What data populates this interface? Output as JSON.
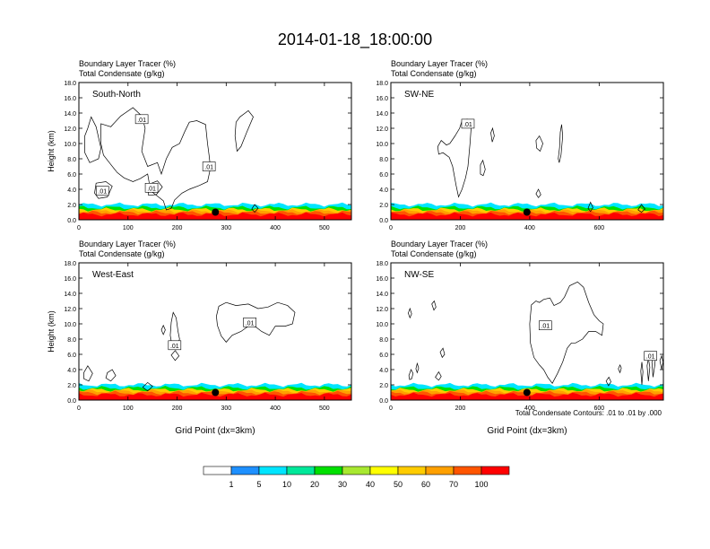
{
  "title": "2014-01-18_18:00:00",
  "chart_data": [
    {
      "type": "area",
      "panel_label": "South-North",
      "var_labels": [
        "Boundary Layer Tracer   (%)",
        "Total Condensate   (g/kg)"
      ],
      "ylabel": "Height (km)",
      "xlabel": "",
      "xlim": [
        0,
        555
      ],
      "ylim": [
        0,
        18
      ],
      "xticks": [
        0,
        100,
        200,
        300,
        400,
        500
      ],
      "yticks": [
        "0.0",
        "2.0",
        "4.0",
        "6.0",
        "8.0",
        "10.0",
        "12.0",
        "14.0",
        "16.0",
        "18.0"
      ],
      "marker": {
        "x": 278,
        "y": 1.0
      },
      "contour_labels": [
        {
          "text": ".01",
          "x": 128,
          "y": 13.2
        },
        {
          "text": ".01",
          "x": 265,
          "y": 7.0
        },
        {
          "text": ".01",
          "x": 48,
          "y": 3.8
        },
        {
          "text": ".01",
          "x": 148,
          "y": 4.2
        }
      ],
      "contours": [
        [
          [
            18,
            12.0
          ],
          [
            25,
            13.5
          ],
          [
            35,
            12.2
          ],
          [
            45,
            9.4
          ],
          [
            40,
            8.0
          ],
          [
            22,
            7.5
          ],
          [
            12,
            8.8
          ],
          [
            12,
            11.0
          ]
        ],
        [
          [
            45,
            12.6
          ],
          [
            65,
            12.2
          ],
          [
            85,
            13.6
          ],
          [
            110,
            14.7
          ],
          [
            125,
            13.8
          ],
          [
            130,
            13.2
          ],
          [
            135,
            12.0
          ],
          [
            128,
            9.0
          ],
          [
            140,
            7.0
          ],
          [
            160,
            7.5
          ],
          [
            168,
            6.0
          ],
          [
            178,
            8.0
          ],
          [
            190,
            9.5
          ],
          [
            205,
            10.0
          ],
          [
            215,
            11.5
          ],
          [
            225,
            12.8
          ],
          [
            240,
            13.0
          ],
          [
            258,
            12.5
          ],
          [
            262,
            10.0
          ],
          [
            265,
            8.5
          ],
          [
            268,
            6.8
          ],
          [
            262,
            5.0
          ],
          [
            245,
            4.5
          ],
          [
            225,
            4.0
          ],
          [
            210,
            3.5
          ],
          [
            195,
            2.6
          ],
          [
            188,
            1.5
          ],
          [
            178,
            1.3
          ],
          [
            172,
            2.5
          ],
          [
            162,
            3.0
          ],
          [
            150,
            3.6
          ],
          [
            145,
            4.2
          ],
          [
            140,
            6.0
          ],
          [
            125,
            5.4
          ],
          [
            110,
            5.0
          ],
          [
            92,
            5.5
          ],
          [
            78,
            6.2
          ],
          [
            62,
            7.5
          ],
          [
            50,
            8.5
          ],
          [
            45,
            10.0
          ]
        ],
        [
          [
            320,
            12.8
          ],
          [
            328,
            13.5
          ],
          [
            345,
            14.3
          ],
          [
            355,
            13.5
          ],
          [
            342,
            11.5
          ],
          [
            330,
            9.6
          ],
          [
            322,
            9.0
          ],
          [
            318,
            11.0
          ]
        ],
        [
          [
            35,
            4.8
          ],
          [
            55,
            5.0
          ],
          [
            68,
            4.4
          ],
          [
            58,
            3.0
          ],
          [
            40,
            2.8
          ],
          [
            32,
            3.5
          ]
        ],
        [
          [
            140,
            4.6
          ],
          [
            160,
            5.1
          ],
          [
            170,
            4.3
          ],
          [
            158,
            3.3
          ],
          [
            142,
            3.2
          ]
        ],
        [
          [
            352,
            1.4
          ],
          [
            358,
            2.0
          ],
          [
            365,
            1.5
          ],
          [
            358,
            1.0
          ]
        ]
      ]
    },
    {
      "type": "area",
      "panel_label": "SW-NE",
      "var_labels": [
        "Boundary Layer Tracer   (%)",
        "Total Condensate   (g/kg)"
      ],
      "ylabel": "",
      "xlabel": "",
      "xlim": [
        0,
        785
      ],
      "ylim": [
        0,
        18
      ],
      "xticks": [
        0,
        200,
        400,
        600
      ],
      "yticks": [
        "0.0",
        "2.0",
        "4.0",
        "6.0",
        "8.0",
        "10.0",
        "12.0",
        "14.0",
        "16.0",
        "18.0"
      ],
      "marker": {
        "x": 392,
        "y": 1.0
      },
      "contour_labels": [
        {
          "text": ".01",
          "x": 222,
          "y": 12.6
        }
      ],
      "contours": [
        [
          [
            135,
            9.6
          ],
          [
            145,
            10.4
          ],
          [
            160,
            9.8
          ],
          [
            170,
            10.0
          ],
          [
            185,
            11.0
          ],
          [
            198,
            12.0
          ],
          [
            205,
            13.0
          ],
          [
            220,
            13.2
          ],
          [
            232,
            12.5
          ],
          [
            228,
            10.0
          ],
          [
            222,
            7.0
          ],
          [
            215,
            5.5
          ],
          [
            205,
            4.0
          ],
          [
            195,
            3.0
          ],
          [
            188,
            4.5
          ],
          [
            178,
            7.0
          ],
          [
            168,
            8.2
          ],
          [
            150,
            8.8
          ],
          [
            138,
            8.6
          ]
        ],
        [
          [
            258,
            7.2
          ],
          [
            265,
            7.8
          ],
          [
            272,
            6.6
          ],
          [
            266,
            5.8
          ],
          [
            258,
            6.0
          ]
        ],
        [
          [
            288,
            11.4
          ],
          [
            293,
            12.0
          ],
          [
            298,
            11.0
          ],
          [
            292,
            10.2
          ]
        ],
        [
          [
            418,
            10.4
          ],
          [
            428,
            11.0
          ],
          [
            438,
            10.0
          ],
          [
            430,
            9.0
          ],
          [
            420,
            9.4
          ]
        ],
        [
          [
            418,
            3.4
          ],
          [
            425,
            4.0
          ],
          [
            432,
            3.3
          ],
          [
            425,
            2.9
          ]
        ],
        [
          [
            482,
            8.0
          ],
          [
            486,
            9.5
          ],
          [
            488,
            11.5
          ],
          [
            492,
            12.5
          ],
          [
            495,
            11.0
          ],
          [
            490,
            8.5
          ],
          [
            485,
            7.5
          ]
        ],
        [
          [
            568,
            1.5
          ],
          [
            575,
            2.3
          ],
          [
            582,
            1.6
          ],
          [
            575,
            1.1
          ]
        ],
        [
          [
            712,
            1.3
          ],
          [
            722,
            2.0
          ],
          [
            732,
            1.4
          ],
          [
            722,
            1.0
          ]
        ]
      ]
    },
    {
      "type": "area",
      "panel_label": "West-East",
      "var_labels": [
        "Boundary Layer Tracer   (%)",
        "Total Condensate   (g/kg)"
      ],
      "ylabel": "Height (km)",
      "xlabel": "Grid Point (dx=3km)",
      "xlim": [
        0,
        555
      ],
      "ylim": [
        0,
        18
      ],
      "xticks": [
        0,
        100,
        200,
        300,
        400,
        500
      ],
      "yticks": [
        "0.0",
        "2.0",
        "4.0",
        "6.0",
        "8.0",
        "10.0",
        "12.0",
        "14.0",
        "16.0",
        "18.0"
      ],
      "marker": {
        "x": 278,
        "y": 1.0
      },
      "contour_labels": [
        {
          "text": ".01",
          "x": 348,
          "y": 10.2
        },
        {
          "text": ".01",
          "x": 195,
          "y": 7.2
        }
      ],
      "contours": [
        [
          [
            280,
            11.0
          ],
          [
            285,
            12.3
          ],
          [
            300,
            12.8
          ],
          [
            320,
            12.4
          ],
          [
            345,
            12.6
          ],
          [
            365,
            12.0
          ],
          [
            385,
            12.2
          ],
          [
            405,
            12.8
          ],
          [
            425,
            12.4
          ],
          [
            440,
            11.5
          ],
          [
            435,
            10.0
          ],
          [
            420,
            9.7
          ],
          [
            400,
            9.7
          ],
          [
            388,
            8.5
          ],
          [
            372,
            9.0
          ],
          [
            360,
            9.6
          ],
          [
            345,
            9.7
          ],
          [
            330,
            9.0
          ],
          [
            312,
            8.5
          ],
          [
            300,
            7.6
          ],
          [
            290,
            8.4
          ],
          [
            282,
            9.8
          ]
        ],
        [
          [
            188,
            10.2
          ],
          [
            192,
            11.5
          ],
          [
            198,
            10.8
          ],
          [
            202,
            9.0
          ],
          [
            205,
            8.0
          ],
          [
            198,
            6.6
          ],
          [
            190,
            7.0
          ],
          [
            186,
            8.5
          ]
        ],
        [
          [
            168,
            9.2
          ],
          [
            172,
            9.8
          ],
          [
            176,
            9.2
          ],
          [
            172,
            8.6
          ]
        ],
        [
          [
            188,
            5.9
          ],
          [
            196,
            6.5
          ],
          [
            204,
            5.8
          ],
          [
            196,
            5.2
          ]
        ],
        [
          [
            58,
            3.6
          ],
          [
            68,
            4.0
          ],
          [
            75,
            3.2
          ],
          [
            65,
            2.5
          ],
          [
            55,
            2.9
          ]
        ],
        [
          [
            10,
            3.6
          ],
          [
            18,
            4.5
          ],
          [
            28,
            3.5
          ],
          [
            20,
            2.5
          ],
          [
            10,
            2.8
          ]
        ],
        [
          [
            130,
            1.7
          ],
          [
            140,
            2.3
          ],
          [
            150,
            1.8
          ],
          [
            140,
            1.2
          ]
        ]
      ]
    },
    {
      "type": "area",
      "panel_label": "NW-SE",
      "var_labels": [
        "Boundary Layer Tracer   (%)",
        "Total Condensate   (g/kg)"
      ],
      "ylabel": "",
      "xlabel": "Grid Point (dx=3km)",
      "xlim": [
        0,
        785
      ],
      "ylim": [
        0,
        18
      ],
      "xticks": [
        0,
        200,
        400,
        600
      ],
      "yticks": [
        "0.0",
        "2.0",
        "4.0",
        "6.0",
        "8.0",
        "10.0",
        "12.0",
        "14.0",
        "16.0",
        "18.0"
      ],
      "marker": {
        "x": 392,
        "y": 1.0
      },
      "contour_labels": [
        {
          "text": ".01",
          "x": 445,
          "y": 9.8
        },
        {
          "text": ".01",
          "x": 748,
          "y": 5.8
        }
      ],
      "contours": [
        [
          [
            400,
            10.0
          ],
          [
            405,
            12.5
          ],
          [
            418,
            13.0
          ],
          [
            428,
            12.8
          ],
          [
            440,
            13.2
          ],
          [
            458,
            13.4
          ],
          [
            470,
            12.4
          ],
          [
            488,
            12.8
          ],
          [
            500,
            13.5
          ],
          [
            515,
            15.0
          ],
          [
            538,
            15.5
          ],
          [
            555,
            14.8
          ],
          [
            570,
            12.8
          ],
          [
            585,
            11.2
          ],
          [
            600,
            10.4
          ],
          [
            612,
            10.0
          ],
          [
            608,
            8.5
          ],
          [
            590,
            9.0
          ],
          [
            570,
            9.0
          ],
          [
            552,
            8.0
          ],
          [
            532,
            7.5
          ],
          [
            520,
            7.5
          ],
          [
            508,
            6.8
          ],
          [
            495,
            5.0
          ],
          [
            480,
            3.5
          ],
          [
            465,
            2.2
          ],
          [
            452,
            3.0
          ],
          [
            440,
            4.0
          ],
          [
            428,
            4.6
          ],
          [
            412,
            5.6
          ],
          [
            402,
            7.5
          ]
        ],
        [
          [
            50,
            11.4
          ],
          [
            55,
            12.0
          ],
          [
            60,
            11.3
          ],
          [
            55,
            10.8
          ]
        ],
        [
          [
            118,
            12.6
          ],
          [
            125,
            13.0
          ],
          [
            130,
            12.2
          ],
          [
            124,
            11.8
          ]
        ],
        [
          [
            128,
            3.0
          ],
          [
            138,
            3.7
          ],
          [
            145,
            3.1
          ],
          [
            138,
            2.6
          ]
        ],
        [
          [
            142,
            6.3
          ],
          [
            150,
            6.8
          ],
          [
            155,
            6.0
          ],
          [
            148,
            5.6
          ]
        ],
        [
          [
            52,
            3.2
          ],
          [
            58,
            4.0
          ],
          [
            64,
            3.5
          ],
          [
            60,
            2.8
          ],
          [
            54,
            2.7
          ]
        ],
        [
          [
            72,
            4.1
          ],
          [
            76,
            4.8
          ],
          [
            80,
            4.2
          ],
          [
            76,
            3.6
          ]
        ],
        [
          [
            655,
            4.1
          ],
          [
            660,
            4.6
          ],
          [
            664,
            4.2
          ],
          [
            660,
            3.6
          ]
        ],
        [
          [
            620,
            2.5
          ],
          [
            628,
            3.0
          ],
          [
            634,
            2.4
          ],
          [
            627,
            1.9
          ]
        ],
        [
          [
            720,
            3.8
          ],
          [
            723,
            5.0
          ],
          [
            726,
            3.7
          ],
          [
            723,
            2.0
          ]
        ],
        [
          [
            738,
            4.5
          ],
          [
            742,
            5.5
          ],
          [
            746,
            4.3
          ],
          [
            742,
            2.5
          ]
        ],
        [
          [
            752,
            5.0
          ],
          [
            756,
            5.9
          ],
          [
            762,
            5.5
          ],
          [
            760,
            4.5
          ],
          [
            755,
            3.0
          ]
        ],
        [
          [
            775,
            5.2
          ],
          [
            780,
            5.8
          ],
          [
            784,
            5.0
          ],
          [
            780,
            4.0
          ]
        ]
      ]
    }
  ],
  "footnote": "Total Condensate Contours: .01 to .01 by .000",
  "colorbar": {
    "colors": [
      "#ffffff",
      "#1e90ff",
      "#00e5ff",
      "#00e89a",
      "#00e000",
      "#a8e830",
      "#ffff00",
      "#ffcc00",
      "#ffa000",
      "#ff5500",
      "#ff0000"
    ],
    "labels": [
      "1",
      "5",
      "10",
      "20",
      "30",
      "40",
      "50",
      "60",
      "70",
      "100"
    ]
  }
}
